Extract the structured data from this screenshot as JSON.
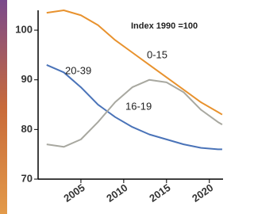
{
  "chart_data": {
    "type": "line",
    "annotation": "Index 1990 =100",
    "x": [
      2001,
      2003,
      2005,
      2007,
      2009,
      2011,
      2013,
      2015,
      2017,
      2019,
      2021,
      2021.5
    ],
    "series": [
      {
        "name": "0-15",
        "color": "#e8922e",
        "values": [
          103.5,
          104,
          103,
          101,
          98,
          95.5,
          93,
          90.5,
          88,
          85.5,
          83.5,
          83
        ]
      },
      {
        "name": "20-39",
        "color": "#4a73b8",
        "values": [
          93,
          91.5,
          88.5,
          85,
          82.5,
          80.5,
          79,
          78,
          77,
          76.3,
          76,
          76
        ]
      },
      {
        "name": "16-19",
        "color": "#a8a8a0",
        "values": [
          77,
          76.5,
          78,
          81.5,
          85.5,
          88.5,
          90,
          89.5,
          87.5,
          84,
          81.5,
          81
        ]
      }
    ],
    "xlim": [
      2000,
      2021.6
    ],
    "xticks": [
      2005,
      2010,
      2015,
      2020
    ],
    "ylim": [
      70,
      104
    ],
    "yticks": [
      70,
      80,
      90,
      100
    ]
  }
}
